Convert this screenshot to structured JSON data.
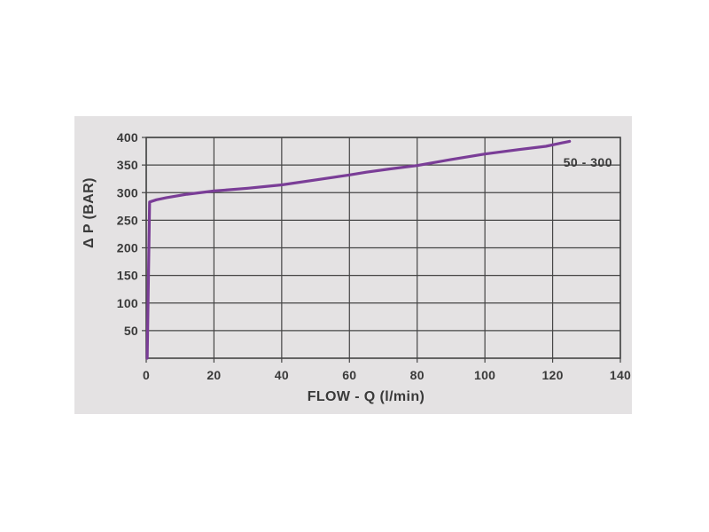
{
  "page": {
    "background": "#ffffff"
  },
  "chart_data": {
    "type": "line",
    "title": "",
    "xlabel": "FLOW - Q (l/min)",
    "ylabel": "Δ P (BAR)",
    "annotation": "50 - 300",
    "xlim": [
      0,
      140
    ],
    "ylim": [
      0,
      400
    ],
    "x_ticks": [
      0,
      20,
      40,
      60,
      80,
      100,
      120,
      140
    ],
    "y_ticks": [
      50,
      100,
      150,
      200,
      250,
      300,
      350,
      400
    ],
    "grid": true,
    "legend_position": "none",
    "series": [
      {
        "name": "50 - 300",
        "color": "#7a3d97",
        "points": [
          [
            0.3,
            0
          ],
          [
            1,
            283
          ],
          [
            3,
            287
          ],
          [
            6,
            291
          ],
          [
            12,
            297
          ],
          [
            20,
            303
          ],
          [
            30,
            308
          ],
          [
            40,
            314
          ],
          [
            50,
            323
          ],
          [
            60,
            332
          ],
          [
            65,
            337
          ],
          [
            72,
            343
          ],
          [
            80,
            349
          ],
          [
            90,
            360
          ],
          [
            100,
            370
          ],
          [
            110,
            378
          ],
          [
            118,
            384
          ],
          [
            125,
            393
          ]
        ]
      }
    ],
    "colors": {
      "panel_bg": "#e4e2e3",
      "grid": "#454545",
      "text": "#3a3a3a",
      "curve": "#7a3d97"
    }
  }
}
